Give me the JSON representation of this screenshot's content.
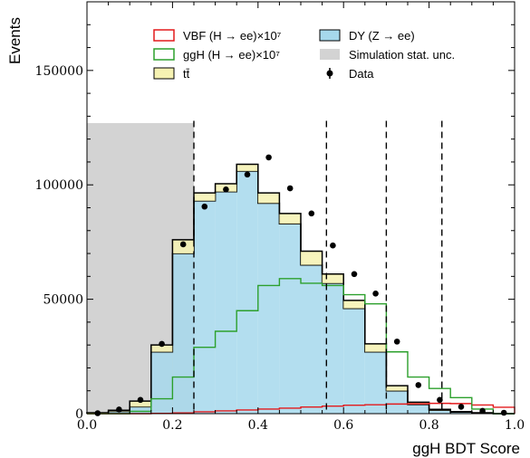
{
  "chart_data": {
    "type": "bar",
    "xlabel": "ggH BDT Score",
    "ylabel": "Events",
    "xlim": [
      0.0,
      1.0
    ],
    "ylim": [
      0,
      180000
    ],
    "bin_edges": [
      0.0,
      0.05,
      0.1,
      0.15,
      0.2,
      0.25,
      0.3,
      0.35,
      0.4,
      0.45,
      0.5,
      0.55,
      0.6,
      0.65,
      0.7,
      0.75,
      0.8,
      0.85,
      0.9,
      0.95,
      1.0
    ],
    "x_ticks": [
      {
        "value": 0.0,
        "label": "0.0"
      },
      {
        "value": 0.2,
        "label": "0.2"
      },
      {
        "value": 0.4,
        "label": "0.4"
      },
      {
        "value": 0.6,
        "label": "0.6"
      },
      {
        "value": 0.8,
        "label": "0.8"
      },
      {
        "value": 1.0,
        "label": "1.0"
      }
    ],
    "y_ticks": [
      {
        "value": 0,
        "label": "0"
      },
      {
        "value": 50000,
        "label": "50000"
      },
      {
        "value": 100000,
        "label": "100000"
      },
      {
        "value": 150000,
        "label": "150000"
      }
    ],
    "series": [
      {
        "name": "DY",
        "legend": "DY (Z → ee)",
        "kind": "stack",
        "color": "#a6d8ec",
        "values": [
          300,
          1000,
          3000,
          27000,
          70000,
          93000,
          97000,
          106000,
          92000,
          83000,
          65000,
          57000,
          46000,
          27000,
          10000,
          4000,
          1500,
          700,
          300,
          0
        ]
      },
      {
        "name": "tt",
        "legend": "tt̄",
        "kind": "stack",
        "color": "#f6f2b2",
        "values": [
          100,
          500,
          2500,
          3000,
          6000,
          3500,
          3500,
          3000,
          4500,
          4500,
          6000,
          4000,
          3500,
          3500,
          2200,
          1000,
          400,
          200,
          100,
          0
        ]
      },
      {
        "name": "VBF",
        "legend": "VBF (H → ee)×10⁷",
        "kind": "line",
        "color": "#e31a1c",
        "values": [
          0,
          0,
          0,
          100,
          300,
          800,
          1200,
          1600,
          2000,
          2400,
          2900,
          3300,
          3700,
          3900,
          4200,
          4300,
          4500,
          4400,
          3800,
          2800
        ]
      },
      {
        "name": "ggH",
        "legend": "ggH (H → ee)×10⁷",
        "kind": "line",
        "color": "#2ca02c",
        "values": [
          0,
          0,
          1000,
          6500,
          16000,
          29000,
          36000,
          45000,
          56000,
          59000,
          57000,
          56000,
          52000,
          48000,
          27000,
          16000,
          11000,
          7000,
          2000,
          0
        ]
      },
      {
        "name": "Data",
        "legend": "Data",
        "kind": "points",
        "color": "#000000",
        "values": [
          200,
          1800,
          6000,
          30500,
          74000,
          90500,
          98000,
          104500,
          112000,
          98500,
          87500,
          73500,
          61000,
          52500,
          31500,
          12500,
          6000,
          3000,
          1200,
          400
        ]
      }
    ],
    "uncertainty": {
      "legend": "Simulation stat. unc.",
      "color": "#d3d3d3",
      "x_range": [
        0.0,
        0.25
      ],
      "y_max": 127000
    },
    "dashed_lines": [
      0.25,
      0.56,
      0.7,
      0.83
    ],
    "legend_position": "top"
  }
}
